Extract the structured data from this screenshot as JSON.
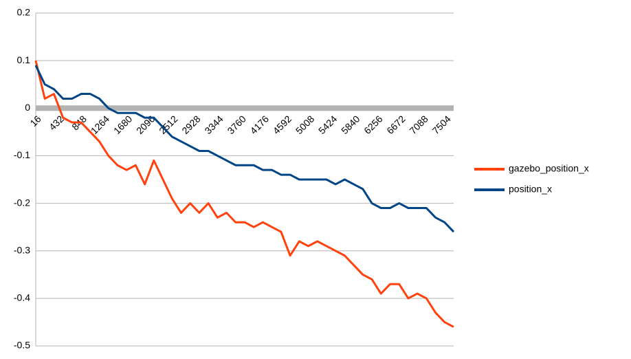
{
  "chart_data": {
    "type": "line",
    "x": [
      16,
      182,
      348,
      514,
      680,
      846,
      1012,
      1178,
      1344,
      1510,
      1676,
      1842,
      2008,
      2174,
      2340,
      2506,
      2672,
      2838,
      3004,
      3170,
      3336,
      3502,
      3668,
      3834,
      4000,
      4166,
      4332,
      4498,
      4664,
      4830,
      4996,
      5162,
      5328,
      5494,
      5660,
      5826,
      5992,
      6158,
      6324,
      6490,
      6656,
      6822,
      6988,
      7154,
      7320,
      7486,
      7652
    ],
    "series": [
      {
        "name": "gazebo_position_x",
        "color": "#ff420e",
        "values": [
          0.1,
          0.02,
          0.03,
          -0.02,
          -0.03,
          -0.03,
          -0.05,
          -0.07,
          -0.1,
          -0.12,
          -0.13,
          -0.12,
          -0.16,
          -0.11,
          -0.15,
          -0.19,
          -0.22,
          -0.2,
          -0.22,
          -0.2,
          -0.23,
          -0.22,
          -0.24,
          -0.24,
          -0.25,
          -0.24,
          -0.25,
          -0.26,
          -0.31,
          -0.28,
          -0.29,
          -0.28,
          -0.29,
          -0.3,
          -0.31,
          -0.33,
          -0.35,
          -0.36,
          -0.39,
          -0.37,
          -0.37,
          -0.4,
          -0.39,
          -0.4,
          -0.43,
          -0.45,
          -0.46
        ]
      },
      {
        "name": "position_x",
        "color": "#004586",
        "values": [
          0.09,
          0.05,
          0.04,
          0.02,
          0.02,
          0.03,
          0.03,
          0.02,
          0.0,
          -0.01,
          -0.01,
          -0.01,
          -0.02,
          -0.02,
          -0.04,
          -0.06,
          -0.07,
          -0.08,
          -0.09,
          -0.09,
          -0.1,
          -0.11,
          -0.12,
          -0.12,
          -0.12,
          -0.13,
          -0.13,
          -0.14,
          -0.14,
          -0.15,
          -0.15,
          -0.15,
          -0.15,
          -0.16,
          -0.15,
          -0.16,
          -0.17,
          -0.2,
          -0.21,
          -0.21,
          -0.2,
          -0.21,
          -0.21,
          -0.21,
          -0.23,
          -0.24,
          -0.26
        ]
      }
    ],
    "xlim": [
      16,
      7652
    ],
    "xticks": [
      16,
      432,
      848,
      1264,
      1680,
      2096,
      2512,
      2928,
      3344,
      3760,
      4176,
      4592,
      5008,
      5424,
      5840,
      6256,
      6672,
      7088,
      7504
    ],
    "ylim": [
      -0.5,
      0.2
    ],
    "yticks": [
      0.2,
      0.1,
      0,
      -0.1,
      -0.2,
      -0.3,
      -0.4,
      -0.5
    ],
    "grid": true,
    "legend": "right"
  }
}
